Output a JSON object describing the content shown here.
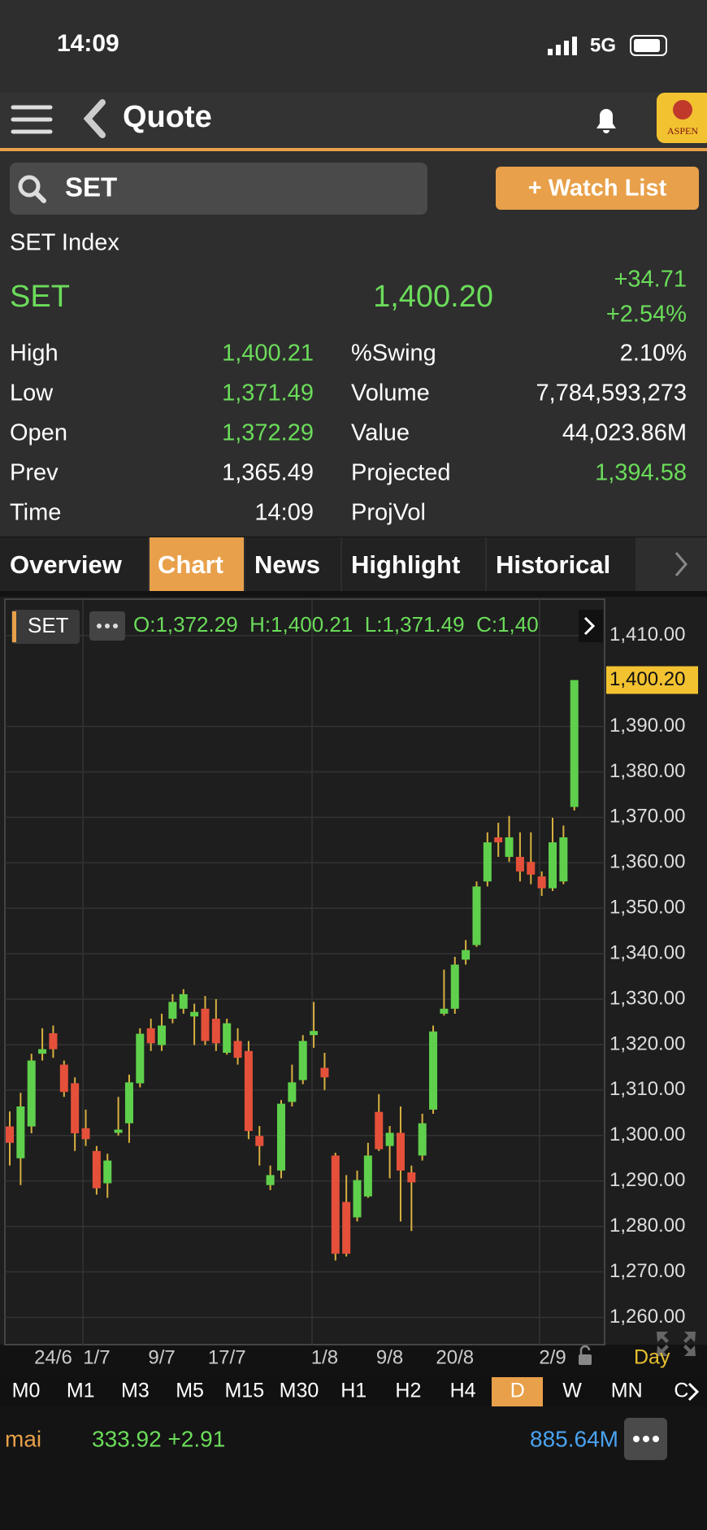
{
  "status_bar": {
    "time": "14:09",
    "network": "5G"
  },
  "nav": {
    "title": "Quote"
  },
  "logo": "ASPEN",
  "search": {
    "query": "SET",
    "button": "+ Watch List"
  },
  "quote": {
    "name": "SET Index",
    "symbol": "SET",
    "last": "1,400.20",
    "change": "+34.71",
    "change_pct": "+2.54%",
    "rows": [
      [
        "High",
        "1,400.21",
        "%Swing",
        "2.10%"
      ],
      [
        "Low",
        "1,371.49",
        "Volume",
        "7,784,593,273"
      ],
      [
        "Open",
        "1,372.29",
        "Value",
        "44,023.86M"
      ],
      [
        "Prev",
        "1,365.49",
        "Projected",
        "1,394.58"
      ],
      [
        "Time",
        "14:09",
        "ProjVol"
      ]
    ]
  },
  "tabs": [
    "Overview",
    "Chart",
    "News",
    "Highlight",
    "Historical"
  ],
  "chart_data": {
    "type": "candlestick",
    "symbol": "SET",
    "ohlc_text": "O:1,372.29  H:1,400.21  L:1,371.49  C:1,40",
    "categories": [
      null,
      null,
      null,
      null,
      "24/6",
      null,
      null,
      null,
      "1/7",
      null,
      null,
      null,
      null,
      null,
      "9/7",
      null,
      null,
      null,
      null,
      null,
      "17/7",
      null,
      null,
      null,
      null,
      null,
      null,
      null,
      null,
      "1/8",
      null,
      null,
      null,
      null,
      null,
      "9/8",
      null,
      null,
      null,
      null,
      null,
      "20/8",
      null,
      null,
      null,
      null,
      null,
      null,
      null,
      null,
      "2/9",
      null,
      null
    ],
    "open": [
      1302,
      1295,
      1302,
      1318,
      1322.5,
      1315.6,
      1311.5,
      1301.6,
      1296.6,
      1289.5,
      1300.6,
      1302.7,
      1311.5,
      1323.6,
      1319.9,
      1325.7,
      1327.9,
      1326.2,
      1327.9,
      1325.7,
      1318.2,
      1320.8,
      1318.6,
      1299.9,
      1289.1,
      1292.3,
      1307.4,
      1312.2,
      1322.1,
      1314.9,
      1295.6,
      1285.4,
      1282,
      1286.6,
      1305.2,
      1297.7,
      1300.6,
      1291.9,
      1295.6,
      1305.7,
      1326.8,
      1327.9,
      1338.7,
      1341.9,
      1355.9,
      1365.6,
      1361.3,
      1361.3,
      1360.2,
      1357,
      1354.4,
      1355.9,
      1372.29
    ],
    "high": [
      1305.3,
      1309.4,
      1318,
      1323.6,
      1324.2,
      1316.5,
      1312.8,
      1305.7,
      1297.7,
      1296,
      1308.5,
      1313.4,
      1323.6,
      1325.7,
      1326.8,
      1331.1,
      1332.2,
      1329,
      1330.7,
      1330,
      1325.7,
      1323.6,
      1320.8,
      1302.1,
      1293.4,
      1307.8,
      1315.6,
      1322.1,
      1329.4,
      1318.2,
      1296.2,
      1291.3,
      1292.3,
      1298.4,
      1309.1,
      1302.1,
      1306.4,
      1293.4,
      1304.8,
      1324.2,
      1336.5,
      1339.3,
      1343,
      1355.9,
      1366.7,
      1368.8,
      1370.3,
      1366.7,
      1366.7,
      1358.1,
      1369.9,
      1368.2,
      1400.21
    ],
    "low": [
      1293.4,
      1289.1,
      1300.5,
      1316.5,
      1317.1,
      1308.5,
      1296.6,
      1297.7,
      1287,
      1286.3,
      1300,
      1298.4,
      1310.6,
      1318.6,
      1318.6,
      1324.7,
      1326.8,
      1319.9,
      1319.9,
      1318.6,
      1317.8,
      1315.6,
      1299.2,
      1293.4,
      1288,
      1290.6,
      1306.4,
      1311.3,
      1319.3,
      1310,
      1272.5,
      1273.4,
      1281.1,
      1286.3,
      1296.6,
      1290.6,
      1281.1,
      1279,
      1294.5,
      1304.8,
      1326.4,
      1326.8,
      1337.6,
      1341.5,
      1354.8,
      1361.3,
      1360.2,
      1355.9,
      1355.3,
      1352.7,
      1353.8,
      1355.3,
      1371.49
    ],
    "close": [
      1298.4,
      1306.4,
      1316.5,
      1319,
      1319,
      1309.6,
      1300.5,
      1299.2,
      1288.4,
      1294.5,
      1301.3,
      1311.7,
      1322.4,
      1320.3,
      1324.2,
      1329.4,
      1331.1,
      1327.2,
      1320.8,
      1320.3,
      1324.7,
      1317.1,
      1301,
      1297.7,
      1291.3,
      1307,
      1311.7,
      1320.8,
      1323,
      1312.8,
      1274,
      1274,
      1290.2,
      1295.6,
      1297,
      1300.6,
      1292.3,
      1289.7,
      1302.7,
      1322.9,
      1327.9,
      1337.6,
      1340.8,
      1354.8,
      1364.5,
      1364.5,
      1365.6,
      1358.1,
      1357.4,
      1354.4,
      1364.5,
      1365.6,
      1400.2
    ],
    "up_color": "#5fd04c",
    "down_color": "#e5503a",
    "wick_color": "#d8b040",
    "ylim": [
      1254,
      1418
    ],
    "yticks": [
      {
        "value": 1260,
        "label": "1,260.00"
      },
      {
        "value": 1270,
        "label": "1,270.00"
      },
      {
        "value": 1280,
        "label": "1,280.00"
      },
      {
        "value": 1290,
        "label": "1,290.00"
      },
      {
        "value": 1300,
        "label": "1,300.00"
      },
      {
        "value": 1310,
        "label": "1,310.00"
      },
      {
        "value": 1320,
        "label": "1,320.00"
      },
      {
        "value": 1330,
        "label": "1,330.00"
      },
      {
        "value": 1340,
        "label": "1,340.00"
      },
      {
        "value": 1350,
        "label": "1,350.00"
      },
      {
        "value": 1360,
        "label": "1,360.00"
      },
      {
        "value": 1370,
        "label": "1,370.00"
      },
      {
        "value": 1380,
        "label": "1,380.00"
      },
      {
        "value": 1390,
        "label": "1,390.00"
      },
      {
        "value": 1410,
        "label": "1,410.00"
      }
    ],
    "grid": true,
    "last_label": {
      "value": 1400.2,
      "label": "1,400.20"
    },
    "interval": "Day"
  },
  "timeframes": [
    "M0",
    "M1",
    "M3",
    "M5",
    "M15",
    "M30",
    "H1",
    "H2",
    "H4",
    "D",
    "W",
    "MN",
    "C"
  ],
  "footer": {
    "symbol": "mai",
    "value": "333.92 +2.91",
    "volume": "885.64M"
  }
}
